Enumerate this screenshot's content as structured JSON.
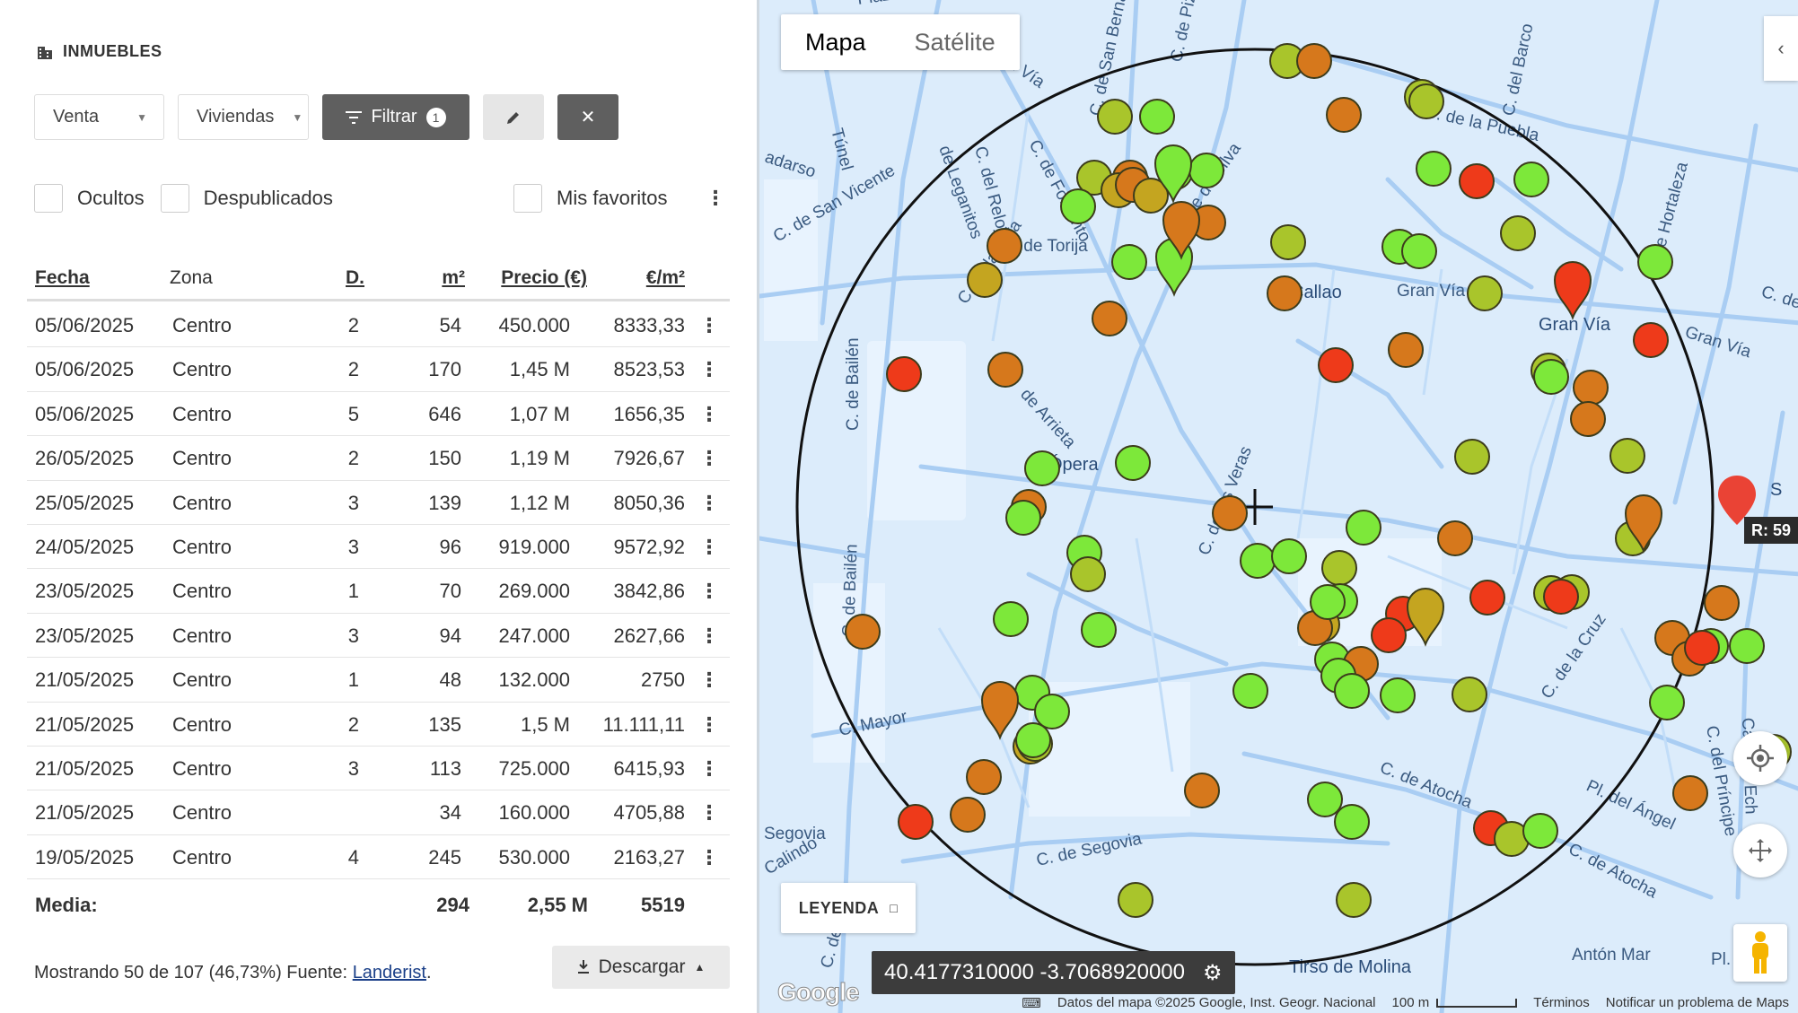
{
  "panel": {
    "title": "INMUEBLES",
    "operation_select": "Venta",
    "type_select": "Viviendas",
    "filter_label": "Filtrar",
    "filter_count": "1",
    "checkbox_hidden": "Ocultos",
    "checkbox_unpublished": "Despublicados",
    "checkbox_favorites": "Mis favoritos"
  },
  "table": {
    "headers": {
      "fecha": "Fecha",
      "zona": "Zona",
      "d": "D.",
      "m2": "m²",
      "precio": "Precio (€)",
      "eur_m2": "€/m²"
    },
    "rows": [
      {
        "fecha": "05/06/2025",
        "zona": "Centro",
        "d": "2",
        "m2": "54",
        "precio": "450.000",
        "eur_m2": "8333,33"
      },
      {
        "fecha": "05/06/2025",
        "zona": "Centro",
        "d": "2",
        "m2": "170",
        "precio": "1,45 M",
        "eur_m2": "8523,53"
      },
      {
        "fecha": "05/06/2025",
        "zona": "Centro",
        "d": "5",
        "m2": "646",
        "precio": "1,07 M",
        "eur_m2": "1656,35"
      },
      {
        "fecha": "26/05/2025",
        "zona": "Centro",
        "d": "2",
        "m2": "150",
        "precio": "1,19 M",
        "eur_m2": "7926,67"
      },
      {
        "fecha": "25/05/2025",
        "zona": "Centro",
        "d": "3",
        "m2": "139",
        "precio": "1,12 M",
        "eur_m2": "8050,36"
      },
      {
        "fecha": "24/05/2025",
        "zona": "Centro",
        "d": "3",
        "m2": "96",
        "precio": "919.000",
        "eur_m2": "9572,92"
      },
      {
        "fecha": "23/05/2025",
        "zona": "Centro",
        "d": "1",
        "m2": "70",
        "precio": "269.000",
        "eur_m2": "3842,86"
      },
      {
        "fecha": "23/05/2025",
        "zona": "Centro",
        "d": "3",
        "m2": "94",
        "precio": "247.000",
        "eur_m2": "2627,66"
      },
      {
        "fecha": "21/05/2025",
        "zona": "Centro",
        "d": "1",
        "m2": "48",
        "precio": "132.000",
        "eur_m2": "2750"
      },
      {
        "fecha": "21/05/2025",
        "zona": "Centro",
        "d": "2",
        "m2": "135",
        "precio": "1,5 M",
        "eur_m2": "11.111,11"
      },
      {
        "fecha": "21/05/2025",
        "zona": "Centro",
        "d": "3",
        "m2": "113",
        "precio": "725.000",
        "eur_m2": "6415,93"
      },
      {
        "fecha": "21/05/2025",
        "zona": "Centro",
        "d": "",
        "m2": "34",
        "precio": "160.000",
        "eur_m2": "4705,88"
      },
      {
        "fecha": "19/05/2025",
        "zona": "Centro",
        "d": "4",
        "m2": "245",
        "precio": "530.000",
        "eur_m2": "2163,27"
      }
    ],
    "footer": {
      "label": "Media:",
      "m2": "294",
      "precio": "2,55 M",
      "eur_m2": "5519"
    }
  },
  "footer": {
    "showing": "Mostrando 50 de 107 (46,73%) Fuente:",
    "source_link": "Landerist",
    "period": ".",
    "download_label": "Descargar"
  },
  "map": {
    "type_map": "Mapa",
    "type_satellite": "Satélite",
    "legend_label": "LEYENDA",
    "coords": "40.4177310000 -3.7068920000",
    "radius_label": "R: 59",
    "google": "Google",
    "attribution": "Datos del mapa ©2025 Google, Inst. Geogr. Nacional",
    "scale": "100 m",
    "terms": "Términos",
    "report": "Notificar un problema de Maps",
    "streets": [
      "Plaza de España",
      "Gran Vía",
      "Túnel",
      "de Leganitos",
      "C. de San Bernardo",
      "C. de Pizarro",
      "adarso",
      "C. de San Vicente",
      "C. del Reloj",
      "C. de Fomento",
      "C. de Torija",
      "Calle de Silva",
      "C. de la Puebla",
      "C. del Barco",
      "C. de Hortaleza",
      "C. de la Bola",
      "Gran Vía",
      "Gran Vía",
      "C. de la",
      "C. de Bailén",
      "de Arrieta",
      "C. de las Veras",
      "C. de Bailén",
      "C. Mayor",
      "C. de la Cruz",
      "C. del Príncipe",
      "Calle de Ech",
      "C. de Atocha",
      "Pl. del Ángel",
      "C. de Atocha",
      "Segovia",
      "C. de Segovia",
      "Calindo",
      "Antón Mar",
      "C. de",
      "Pl. de"
    ],
    "metro": [
      "Callao",
      "Gran Vía",
      "Ópera",
      "Tirso de Molina",
      "S"
    ],
    "colors": {
      "green": "#7de83a",
      "lime": "#a9c52b",
      "olive": "#c4a520",
      "orange": "#d6781c",
      "red": "#ee3a1a"
    }
  }
}
